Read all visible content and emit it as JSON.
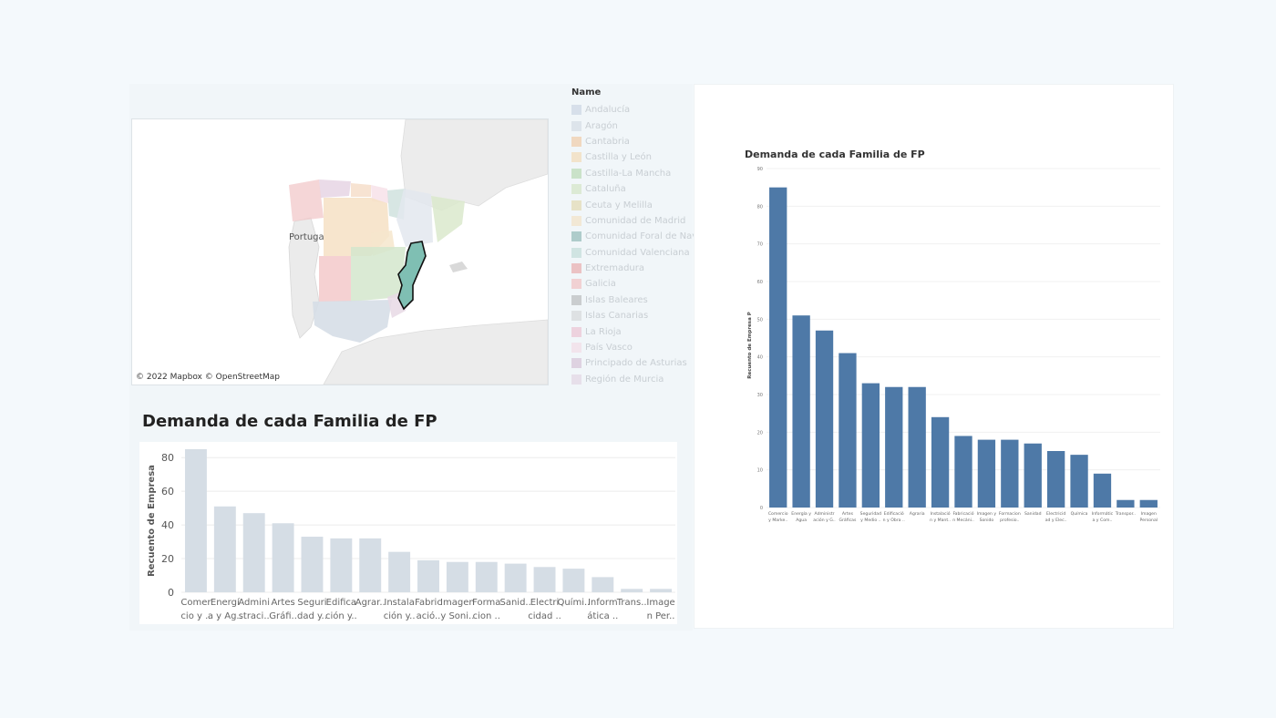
{
  "map": {
    "label_portugal": "Portuga",
    "credit": "© 2022 Mapbox © OpenStreetMap"
  },
  "legend": {
    "title": "Name",
    "items": [
      {
        "label": "Andalucía",
        "color": "#b7c4d6"
      },
      {
        "label": "Aragón",
        "color": "#c5cfd9"
      },
      {
        "label": "Cantabria",
        "color": "#f0b37a"
      },
      {
        "label": "Castilla y León",
        "color": "#f4cd92"
      },
      {
        "label": "Castilla-La Mancha",
        "color": "#9cc98e"
      },
      {
        "label": "Cataluña",
        "color": "#c3dca8"
      },
      {
        "label": "Ceuta y Melilla",
        "color": "#dcc98a"
      },
      {
        "label": "Comunidad de Madrid",
        "color": "#f3d6a8"
      },
      {
        "label": "Comunidad Foral de Navarra",
        "color": "#5d9a93"
      },
      {
        "label": "Comunidad Valenciana",
        "color": "#a9cfc6"
      },
      {
        "label": "Extremadura",
        "color": "#e58282"
      },
      {
        "label": "Galicia",
        "color": "#f2a3a5"
      },
      {
        "label": "Islas Baleares",
        "color": "#9b9b9b"
      },
      {
        "label": "Islas Canarias",
        "color": "#c7c7c7"
      },
      {
        "label": "La Rioja",
        "color": "#e9a7bd"
      },
      {
        "label": "País Vasco",
        "color": "#f5cfdb"
      },
      {
        "label": "Principado de Asturias",
        "color": "#c7a7c3"
      },
      {
        "label": "Región de Murcia",
        "color": "#dcc3d8"
      }
    ]
  },
  "small_chart": {
    "title": "Demanda de cada Familia de FP",
    "ylabel": "Recuento de Empresa",
    "bar_color": "#d5dde5"
  },
  "big_chart": {
    "title": "Demanda de cada Familia de FP",
    "ylabel": "Recuento de Empresa P",
    "bar_color": "#4e79a7"
  },
  "chart_data": [
    {
      "type": "bar",
      "title": "Demanda de cada Familia de FP",
      "ylabel": "Recuento de Empresa",
      "ylim": [
        0,
        85
      ],
      "yticks": [
        0,
        20,
        40,
        60,
        80
      ],
      "grid": true,
      "categories": [
        [
          "Comer",
          "cio y .."
        ],
        [
          "Energí",
          "a y Ag.."
        ],
        [
          "Admini",
          "straci.."
        ],
        [
          "Artes",
          "Gráfi.."
        ],
        [
          "Seguri",
          "dad y.."
        ],
        [
          "Edifica",
          "ción y.."
        ],
        [
          "Agrar..",
          ""
        ],
        [
          "Instala",
          "ción y.."
        ],
        [
          "Fabric",
          "ació.."
        ],
        [
          "Imagen",
          "y Soni.."
        ],
        [
          "Forma",
          "cion .."
        ],
        [
          "Sanid..",
          ""
        ],
        [
          "Electri",
          "cidad .."
        ],
        [
          "Quími..",
          ""
        ],
        [
          "Inform",
          "ática .."
        ],
        [
          "Trans..",
          ""
        ],
        [
          "Image",
          "n Per.."
        ]
      ],
      "values": [
        85,
        51,
        47,
        41,
        33,
        32,
        32,
        24,
        19,
        18,
        18,
        17,
        15,
        14,
        9,
        2,
        2
      ]
    },
    {
      "type": "bar",
      "title": "Demanda de cada Familia de FP",
      "ylabel": "Recuento de Empresa P",
      "ylim": [
        0,
        90
      ],
      "yticks": [
        0,
        10,
        20,
        30,
        40,
        50,
        60,
        70,
        80,
        90
      ],
      "grid": true,
      "categories": [
        [
          "Comercio",
          "y Marke.."
        ],
        [
          "Energía y",
          "Agua"
        ],
        [
          "Administr",
          "ación y G.."
        ],
        [
          "Artes",
          "Gráficas"
        ],
        [
          "Seguridad",
          "y Medio .."
        ],
        [
          "Edificació",
          "n y Obra .."
        ],
        [
          "Agraria",
          ""
        ],
        [
          "Instalació",
          "n y Mant.."
        ],
        [
          "Fabricació",
          "n Mecáni.."
        ],
        [
          "Imagen y",
          "Sonido"
        ],
        [
          "Formacion",
          "profesio.."
        ],
        [
          "Sanidad",
          ""
        ],
        [
          "Electricid",
          "ad y Elec.."
        ],
        [
          "Química",
          ""
        ],
        [
          "Informátic",
          "a y Com.."
        ],
        [
          "Transpor..",
          ""
        ],
        [
          "Imagen",
          "Personal"
        ]
      ],
      "values": [
        85,
        51,
        47,
        41,
        33,
        32,
        32,
        24,
        19,
        18,
        18,
        17,
        15,
        14,
        9,
        2,
        2
      ]
    }
  ]
}
